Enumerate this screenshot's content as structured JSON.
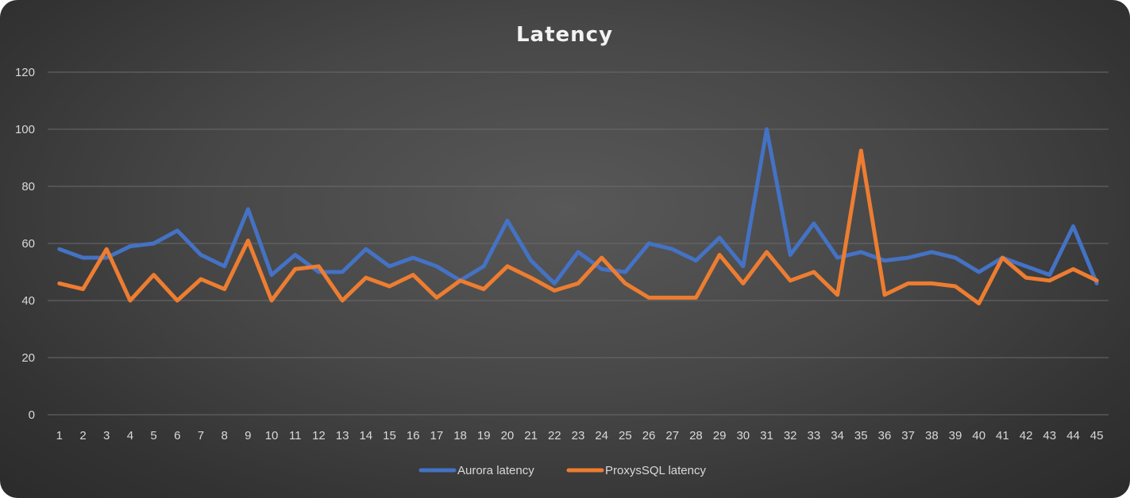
{
  "chart_data": {
    "type": "line",
    "title": "Latency",
    "xlabel": "",
    "ylabel": "",
    "ylim": [
      0,
      120
    ],
    "yticks": [
      0,
      20,
      40,
      60,
      80,
      100,
      120
    ],
    "grid": true,
    "legend": "bottom-center",
    "categories": [
      "1",
      "2",
      "3",
      "4",
      "5",
      "6",
      "7",
      "8",
      "9",
      "10",
      "11",
      "12",
      "13",
      "14",
      "15",
      "16",
      "17",
      "18",
      "19",
      "20",
      "21",
      "22",
      "23",
      "24",
      "25",
      "26",
      "27",
      "28",
      "29",
      "30",
      "31",
      "32",
      "33",
      "34",
      "35",
      "36",
      "37",
      "38",
      "39",
      "40",
      "41",
      "42",
      "43",
      "44",
      "45"
    ],
    "series": [
      {
        "name": "Aurora latency",
        "color": "#4472c4",
        "values": [
          58,
          55,
          55,
          59,
          60,
          64.5,
          56,
          52,
          72,
          49,
          56,
          50,
          50,
          58,
          52,
          55,
          52,
          47,
          52,
          68,
          54,
          46,
          57,
          51,
          50,
          60,
          58,
          54,
          62,
          52,
          100,
          56,
          67,
          55,
          57,
          54,
          55,
          57,
          55,
          50,
          55,
          52,
          49,
          66,
          46
        ]
      },
      {
        "name": "ProxysSQL latency",
        "color": "#ed7d31",
        "values": [
          46,
          44,
          58,
          40,
          49,
          40,
          47.5,
          44,
          61,
          40,
          51,
          52,
          40,
          48,
          45,
          49,
          41,
          47,
          44,
          52,
          48,
          43.5,
          46,
          55,
          46,
          41,
          41,
          41,
          56,
          46,
          57,
          47,
          50,
          42,
          92.5,
          42,
          46,
          46,
          45,
          39,
          55,
          48,
          47,
          51,
          47
        ]
      }
    ]
  }
}
